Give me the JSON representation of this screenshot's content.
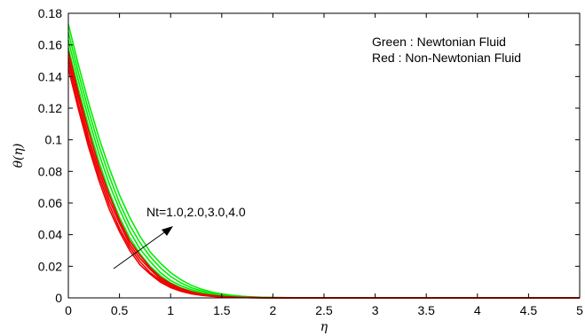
{
  "chart_data": {
    "type": "line",
    "xlabel": "η",
    "ylabel": "θ(η)",
    "xlim": [
      0,
      5
    ],
    "ylim": [
      0,
      0.18
    ],
    "x_ticks": [
      "0",
      "0.5",
      "1",
      "1.5",
      "2",
      "2.5",
      "3",
      "3.5",
      "4",
      "4.5",
      "5"
    ],
    "y_ticks": [
      "0",
      "0.02",
      "0.04",
      "0.06",
      "0.08",
      "0.1",
      "0.12",
      "0.14",
      "0.16",
      "0.18"
    ],
    "grid": false,
    "legend_lines": [
      "Green : Newtonian Fluid",
      "Red : Non-Newtonian Fluid"
    ],
    "legend_position": "top-right",
    "annotation": "Nt=1.0,2.0,3.0,4.0",
    "colors": {
      "green": "#00ee00",
      "red": "#ee0000",
      "axis": "#000000"
    },
    "x": [
      0,
      0.1,
      0.2,
      0.3,
      0.4,
      0.5,
      0.6,
      0.7,
      0.8,
      0.9,
      1.0,
      1.1,
      1.2,
      1.3,
      1.4,
      1.5,
      1.6,
      1.7,
      1.8,
      1.9,
      2.0,
      2.2,
      2.5,
      3.0,
      3.5,
      4.0,
      4.5,
      5.0
    ],
    "series": [
      {
        "group": "green",
        "values": [
          0.158,
          0.132,
          0.108,
          0.086,
          0.067,
          0.051,
          0.038,
          0.028,
          0.02,
          0.014,
          0.0095,
          0.0064,
          0.0042,
          0.0027,
          0.0017,
          0.0011,
          0.0007,
          0.0004,
          0.0003,
          0.0002,
          0.0001,
          5e-05,
          2e-05,
          0,
          0,
          0,
          0,
          0
        ]
      },
      {
        "group": "green",
        "values": [
          0.163,
          0.137,
          0.113,
          0.091,
          0.072,
          0.056,
          0.042,
          0.031,
          0.023,
          0.016,
          0.011,
          0.0077,
          0.0052,
          0.0034,
          0.0022,
          0.0014,
          0.0009,
          0.0006,
          0.0004,
          0.0002,
          0.0001,
          6e-05,
          2e-05,
          0,
          0,
          0,
          0,
          0
        ]
      },
      {
        "group": "green",
        "values": [
          0.168,
          0.142,
          0.118,
          0.096,
          0.077,
          0.06,
          0.046,
          0.035,
          0.026,
          0.019,
          0.0135,
          0.0095,
          0.0065,
          0.0044,
          0.0029,
          0.0019,
          0.0012,
          0.0008,
          0.0005,
          0.0003,
          0.0002,
          8e-05,
          3e-05,
          0,
          0,
          0,
          0,
          0
        ]
      },
      {
        "group": "green",
        "values": [
          0.173,
          0.147,
          0.123,
          0.101,
          0.082,
          0.065,
          0.051,
          0.039,
          0.029,
          0.022,
          0.016,
          0.0115,
          0.008,
          0.0055,
          0.0037,
          0.0025,
          0.0016,
          0.001,
          0.0006,
          0.0004,
          0.0002,
          0.0001,
          4e-05,
          0,
          0,
          0,
          0,
          0
        ]
      },
      {
        "group": "red",
        "values": [
          0.145,
          0.119,
          0.095,
          0.074,
          0.056,
          0.042,
          0.03,
          0.021,
          0.015,
          0.01,
          0.0065,
          0.0042,
          0.0026,
          0.0016,
          0.001,
          0.0006,
          0.0003,
          0.0002,
          0.0001,
          5e-05,
          3e-05,
          1e-05,
          0,
          0,
          0,
          0,
          0,
          0
        ]
      },
      {
        "group": "red",
        "values": [
          0.149,
          0.122,
          0.098,
          0.077,
          0.059,
          0.044,
          0.032,
          0.023,
          0.016,
          0.011,
          0.0073,
          0.0048,
          0.003,
          0.0019,
          0.0012,
          0.0007,
          0.0004,
          0.0002,
          0.0001,
          6e-05,
          3e-05,
          1e-05,
          0,
          0,
          0,
          0,
          0,
          0
        ]
      },
      {
        "group": "red",
        "values": [
          0.152,
          0.126,
          0.101,
          0.08,
          0.062,
          0.047,
          0.034,
          0.025,
          0.018,
          0.012,
          0.0082,
          0.0054,
          0.0035,
          0.0022,
          0.0014,
          0.0008,
          0.0005,
          0.0003,
          0.0002,
          0.0001,
          4e-05,
          2e-05,
          0,
          0,
          0,
          0,
          0,
          0
        ]
      },
      {
        "group": "red",
        "values": [
          0.156,
          0.129,
          0.105,
          0.083,
          0.065,
          0.049,
          0.036,
          0.027,
          0.019,
          0.013,
          0.009,
          0.006,
          0.0039,
          0.0025,
          0.0016,
          0.001,
          0.0006,
          0.0003,
          0.0002,
          0.0001,
          5e-05,
          2e-05,
          0,
          0,
          0,
          0,
          0,
          0
        ]
      }
    ]
  }
}
